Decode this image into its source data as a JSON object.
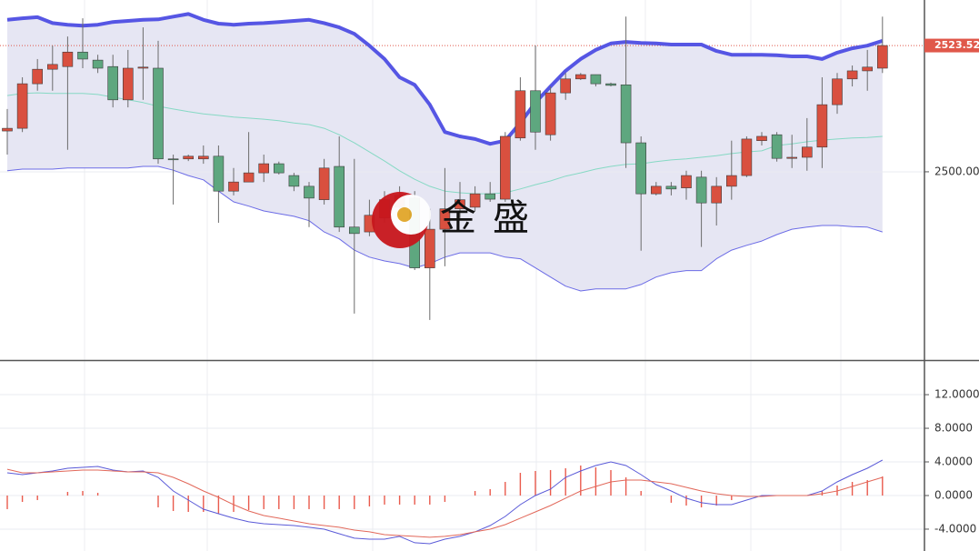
{
  "chart_data": [
    {
      "type": "candlestick",
      "ylim": [
        2465.1,
        2532
      ],
      "yticks": [
        {
          "value": 2500,
          "label": "2500.000"
        }
      ],
      "grid": true,
      "price_line": {
        "value": 2523.52,
        "label": "2523.520",
        "color": "#e0584a"
      },
      "up_color": "#d9503f",
      "down_color": "#5ea77f",
      "open": [
        2507.6,
        2508.1,
        2516.4,
        2519.1,
        2519.6,
        2522.3,
        2520.8,
        2519.6,
        2513.4,
        2519.3,
        2519.3,
        2502.4,
        2502.4,
        2502.4,
        2502.9,
        2496.4,
        2498.1,
        2499.8,
        2501.5,
        2499.3,
        2497.3,
        2494.8,
        2501.0,
        2489.7,
        2488.8,
        2491.4,
        2493.4,
        2495.1,
        2482.1,
        2489.3,
        2493.1,
        2493.4,
        2495.9,
        2494.9,
        2506.3,
        2515.1,
        2506.9,
        2514.7,
        2517.3,
        2518.1,
        2516.4,
        2516.2,
        2505.4,
        2495.9,
        2497.3,
        2497.0,
        2499.0,
        2494.2,
        2497.3,
        2499.3,
        2505.8,
        2506.9,
        2502.5,
        2502.7,
        2504.6,
        2512.5,
        2517.3,
        2518.8,
        2519.3
      ],
      "high": [
        2511.7,
        2517.6,
        2521.0,
        2523.5,
        2525.2,
        2528.6,
        2521.8,
        2521.8,
        2522.7,
        2526.9,
        2524.4,
        2503.2,
        2503.2,
        2504.9,
        2504.9,
        2500.7,
        2507.4,
        2503.2,
        2501.9,
        2499.8,
        2498.1,
        2502.4,
        2506.6,
        2502.4,
        2494.8,
        2496.4,
        2497.3,
        2496.4,
        2493.1,
        2500.7,
        2498.1,
        2497.3,
        2498.1,
        2507.4,
        2517.6,
        2523.5,
        2515.9,
        2518.4,
        2518.4,
        2518.1,
        2516.6,
        2528.9,
        2506.6,
        2498.1,
        2498.1,
        2500.2,
        2500.2,
        2499.0,
        2505.8,
        2506.6,
        2507.4,
        2507.4,
        2506.9,
        2510.0,
        2517.6,
        2518.4,
        2519.8,
        2522.7,
        2528.9
      ],
      "low": [
        2503.2,
        2507.4,
        2515.1,
        2515.1,
        2504.1,
        2519.3,
        2518.4,
        2512.0,
        2512.0,
        2513.4,
        2501.5,
        2493.9,
        2502.0,
        2501.5,
        2490.5,
        2495.6,
        2498.1,
        2498.1,
        2499.5,
        2496.4,
        2489.7,
        2493.9,
        2488.8,
        2473.6,
        2488.0,
        2490.5,
        2493.1,
        2481.7,
        2472.4,
        2482.4,
        2491.4,
        2492.7,
        2494.4,
        2494.4,
        2505.8,
        2504.1,
        2505.8,
        2513.4,
        2517.1,
        2515.9,
        2515.9,
        2500.7,
        2485.3,
        2495.6,
        2495.6,
        2494.8,
        2486.0,
        2490.0,
        2494.8,
        2499.0,
        2504.9,
        2501.9,
        2500.7,
        2500.2,
        2500.7,
        2510.8,
        2515.9,
        2515.1,
        2518.4
      ],
      "close": [
        2508.1,
        2516.4,
        2519.1,
        2520.0,
        2522.3,
        2521.0,
        2519.3,
        2513.4,
        2519.3,
        2519.5,
        2502.4,
        2502.3,
        2502.9,
        2502.9,
        2496.4,
        2498.1,
        2499.8,
        2501.5,
        2499.8,
        2497.3,
        2495.1,
        2500.7,
        2489.7,
        2488.5,
        2491.9,
        2494.8,
        2495.6,
        2482.1,
        2489.3,
        2493.1,
        2494.8,
        2495.9,
        2494.9,
        2506.6,
        2515.1,
        2507.4,
        2514.7,
        2517.3,
        2518.1,
        2516.4,
        2516.1,
        2505.4,
        2495.9,
        2497.3,
        2496.8,
        2499.3,
        2494.2,
        2497.3,
        2499.3,
        2506.1,
        2506.6,
        2502.5,
        2502.7,
        2504.6,
        2512.5,
        2517.3,
        2518.8,
        2519.5,
        2523.52
      ],
      "band_fill": "#e6e6f3",
      "bands": [
        {
          "color": "#5656e4",
          "values": [
            2528.3,
            2528.6,
            2528.8,
            2527.7,
            2527.4,
            2527.2,
            2527.4,
            2527.9,
            2528.1,
            2528.3,
            2528.4,
            2528.9,
            2529.4,
            2528.3,
            2527.6,
            2527.4,
            2527.6,
            2527.7,
            2527.9,
            2528.1,
            2528.3,
            2527.7,
            2526.9,
            2525.7,
            2523.5,
            2521.0,
            2517.6,
            2516.2,
            2512.5,
            2507.4,
            2506.6,
            2506.1,
            2505.2,
            2505.8,
            2509.1,
            2512.9,
            2515.9,
            2518.8,
            2521.0,
            2522.7,
            2523.9,
            2524.2,
            2524.0,
            2523.9,
            2523.7,
            2523.7,
            2523.7,
            2522.5,
            2521.8,
            2521.8,
            2521.8,
            2521.7,
            2521.5,
            2521.5,
            2521.0,
            2522.2,
            2523.0,
            2523.5,
            2524.4
          ]
        },
        {
          "color": "#86d9c4",
          "values": [
            2514.2,
            2514.6,
            2514.7,
            2514.6,
            2514.6,
            2514.6,
            2514.4,
            2513.9,
            2513.4,
            2512.9,
            2512.2,
            2511.7,
            2511.2,
            2510.8,
            2510.5,
            2510.2,
            2510.0,
            2509.8,
            2509.5,
            2509.1,
            2508.8,
            2508.1,
            2506.9,
            2505.4,
            2503.7,
            2502.0,
            2500.2,
            2498.6,
            2497.3,
            2496.4,
            2496.1,
            2495.9,
            2495.9,
            2496.1,
            2496.8,
            2497.6,
            2498.3,
            2499.2,
            2499.8,
            2500.5,
            2501.0,
            2501.4,
            2501.5,
            2501.9,
            2502.2,
            2502.4,
            2502.7,
            2503.0,
            2503.4,
            2503.7,
            2503.9,
            2504.9,
            2505.2,
            2505.6,
            2505.9,
            2506.1,
            2506.3,
            2506.4,
            2506.6
          ]
        },
        {
          "color": "#6b6be6",
          "values": [
            2500.2,
            2500.5,
            2500.5,
            2500.5,
            2500.7,
            2500.7,
            2500.7,
            2500.7,
            2500.7,
            2501.0,
            2501.0,
            2500.3,
            2499.3,
            2498.5,
            2496.4,
            2494.4,
            2493.6,
            2492.7,
            2492.2,
            2491.7,
            2490.9,
            2488.8,
            2487.5,
            2485.4,
            2484.1,
            2483.4,
            2482.9,
            2482.1,
            2482.9,
            2484.1,
            2484.9,
            2484.9,
            2484.9,
            2484.1,
            2483.8,
            2482.1,
            2480.4,
            2478.7,
            2477.8,
            2478.2,
            2478.2,
            2478.2,
            2479.0,
            2480.4,
            2481.2,
            2481.6,
            2481.6,
            2483.8,
            2485.4,
            2486.3,
            2487.1,
            2488.3,
            2489.3,
            2489.7,
            2490.0,
            2490.0,
            2489.8,
            2489.7,
            2488.8
          ]
        }
      ],
      "watermark": "金盛"
    },
    {
      "type": "macd",
      "ylim": [
        -6.6,
        15.9
      ],
      "yticks": [
        {
          "value": -4,
          "label": "-4.0000"
        },
        {
          "value": 0,
          "label": "0.0000"
        },
        {
          "value": 4,
          "label": "4.0000"
        },
        {
          "value": 8,
          "label": "8.0000"
        },
        {
          "value": 12,
          "label": "12.0000"
        }
      ],
      "grid": true,
      "series": [
        {
          "kind": "bar",
          "color": "#ea5a4c",
          "values": [
            -1.62,
            -0.76,
            -0.54,
            0,
            0.43,
            0.54,
            0.32,
            0,
            0,
            0,
            -1.41,
            -1.84,
            -1.95,
            -1.95,
            -2.16,
            -1.95,
            -1.73,
            -1.62,
            -1.62,
            -1.62,
            -1.62,
            -1.62,
            -1.62,
            -1.62,
            -1.3,
            -1.08,
            -1.08,
            -1.08,
            -1.08,
            -0.76,
            0,
            0.54,
            0.76,
            1.62,
            2.7,
            2.92,
            3.03,
            3.24,
            3.57,
            3.35,
            3.03,
            2.16,
            0.54,
            0,
            -0.86,
            -1.19,
            -1.41,
            -1.19,
            -0.54,
            0,
            0,
            0,
            0,
            0,
            0.54,
            1.19,
            1.62,
            1.84,
            2.27
          ]
        },
        {
          "kind": "line",
          "color": "#5a5ad8",
          "values": [
            2.7,
            2.49,
            2.7,
            2.92,
            3.24,
            3.35,
            3.46,
            3.03,
            2.81,
            2.92,
            2.16,
            0.54,
            -0.54,
            -1.62,
            -2.16,
            -2.7,
            -3.13,
            -3.35,
            -3.46,
            -3.57,
            -3.78,
            -4.0,
            -4.54,
            -5.08,
            -5.19,
            -5.19,
            -4.86,
            -5.62,
            -5.73,
            -5.19,
            -4.86,
            -4.32,
            -3.57,
            -2.49,
            -1.08,
            0,
            0.76,
            2.16,
            2.92,
            3.57,
            4.0,
            3.57,
            2.49,
            1.3,
            0.54,
            -0.32,
            -0.86,
            -1.08,
            -1.08,
            -0.54,
            0,
            0,
            0,
            0,
            0.54,
            1.62,
            2.49,
            3.24,
            4.22
          ]
        },
        {
          "kind": "line",
          "color": "#e2685a",
          "values": [
            3.13,
            2.7,
            2.7,
            2.81,
            2.92,
            3.03,
            3.03,
            2.92,
            2.81,
            2.81,
            2.7,
            2.16,
            1.41,
            0.54,
            -0.22,
            -1.08,
            -1.84,
            -2.38,
            -2.7,
            -3.03,
            -3.35,
            -3.57,
            -3.78,
            -4.11,
            -4.32,
            -4.65,
            -4.76,
            -4.86,
            -4.97,
            -4.86,
            -4.65,
            -4.32,
            -4.0,
            -3.46,
            -2.7,
            -1.95,
            -1.19,
            -0.32,
            0.54,
            1.08,
            1.62,
            1.84,
            1.84,
            1.62,
            1.41,
            0.97,
            0.54,
            0.22,
            0,
            -0.11,
            -0.11,
            0,
            0,
            0,
            0.22,
            0.54,
            1.08,
            1.62,
            2.16
          ]
        }
      ]
    }
  ]
}
